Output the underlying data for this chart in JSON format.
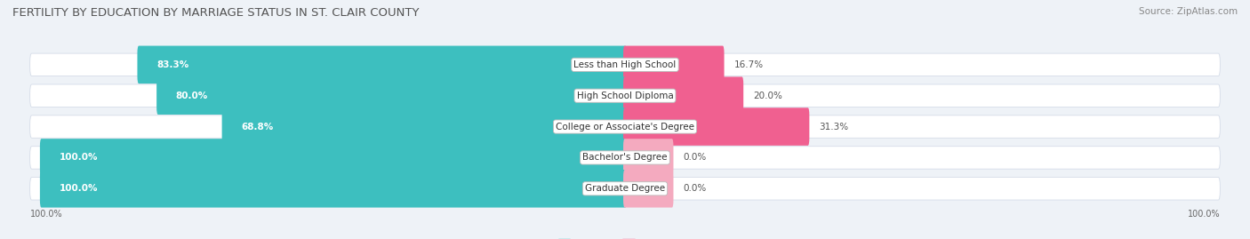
{
  "title": "FERTILITY BY EDUCATION BY MARRIAGE STATUS IN ST. CLAIR COUNTY",
  "source": "Source: ZipAtlas.com",
  "categories": [
    "Less than High School",
    "High School Diploma",
    "College or Associate's Degree",
    "Bachelor's Degree",
    "Graduate Degree"
  ],
  "married": [
    83.3,
    80.0,
    68.8,
    100.0,
    100.0
  ],
  "unmarried": [
    16.7,
    20.0,
    31.3,
    0.0,
    0.0
  ],
  "married_color": "#3DBFBF",
  "unmarried_color": "#F06090",
  "unmarried_color_light": "#F4AABF",
  "bg_color": "#EEF2F7",
  "row_bg_color": "#FFFFFF",
  "row_edge_color": "#D5DCE8",
  "title_fontsize": 9.5,
  "source_fontsize": 7.5,
  "label_fontsize": 7.5,
  "value_fontsize": 7.5,
  "axis_label_fontsize": 7,
  "legend_fontsize": 8
}
